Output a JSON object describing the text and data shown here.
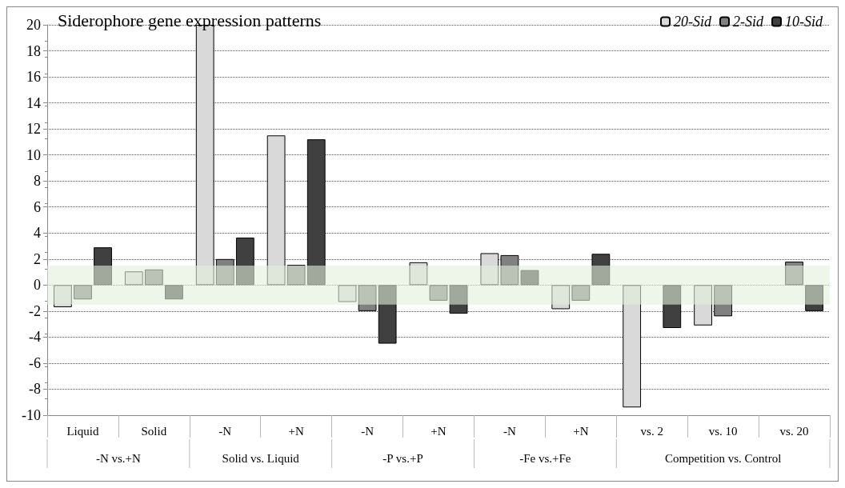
{
  "chart_data": {
    "type": "bar",
    "title": "Siderophore gene expression patterns",
    "categories": [
      "Liquid",
      "Solid",
      "-N",
      "+N",
      "-N",
      "+N",
      "-N",
      "+N",
      "vs. 2",
      "vs. 10",
      "vs. 20"
    ],
    "series": [
      {
        "name": "20-Sid",
        "color": "#d9d9d9",
        "values": [
          -1.7,
          1.05,
          20,
          11.5,
          -1.3,
          1.75,
          2.45,
          -1.85,
          -9.4,
          -3.1,
          null
        ]
      },
      {
        "name": "2-Sid",
        "color": "#808080",
        "values": [
          -1.1,
          1.2,
          2.0,
          1.55,
          -2.0,
          -1.2,
          2.3,
          -1.2,
          null,
          -2.4,
          1.8
        ]
      },
      {
        "name": "10-Sid",
        "color": "#404040",
        "values": [
          2.9,
          -1.1,
          3.65,
          11.2,
          -4.5,
          -2.2,
          1.15,
          2.4,
          -3.3,
          null,
          -2.0
        ]
      }
    ],
    "annotations": [
      "-N vs.+N",
      "Solid vs. Liquid",
      "-P vs.+P",
      "-Fe vs.+Fe",
      "Competition vs. Control"
    ],
    "bands": [
      {
        "axis": "y",
        "from": -1.5,
        "to": 1.5,
        "color": "#e2efda"
      }
    ],
    "ylim": [
      -10,
      20
    ],
    "yticks": [
      -10,
      -8,
      -6,
      -4,
      -2,
      0,
      2,
      4,
      6,
      8,
      10,
      12,
      14,
      16,
      18,
      20
    ],
    "grid": "y",
    "legend": "top right"
  }
}
